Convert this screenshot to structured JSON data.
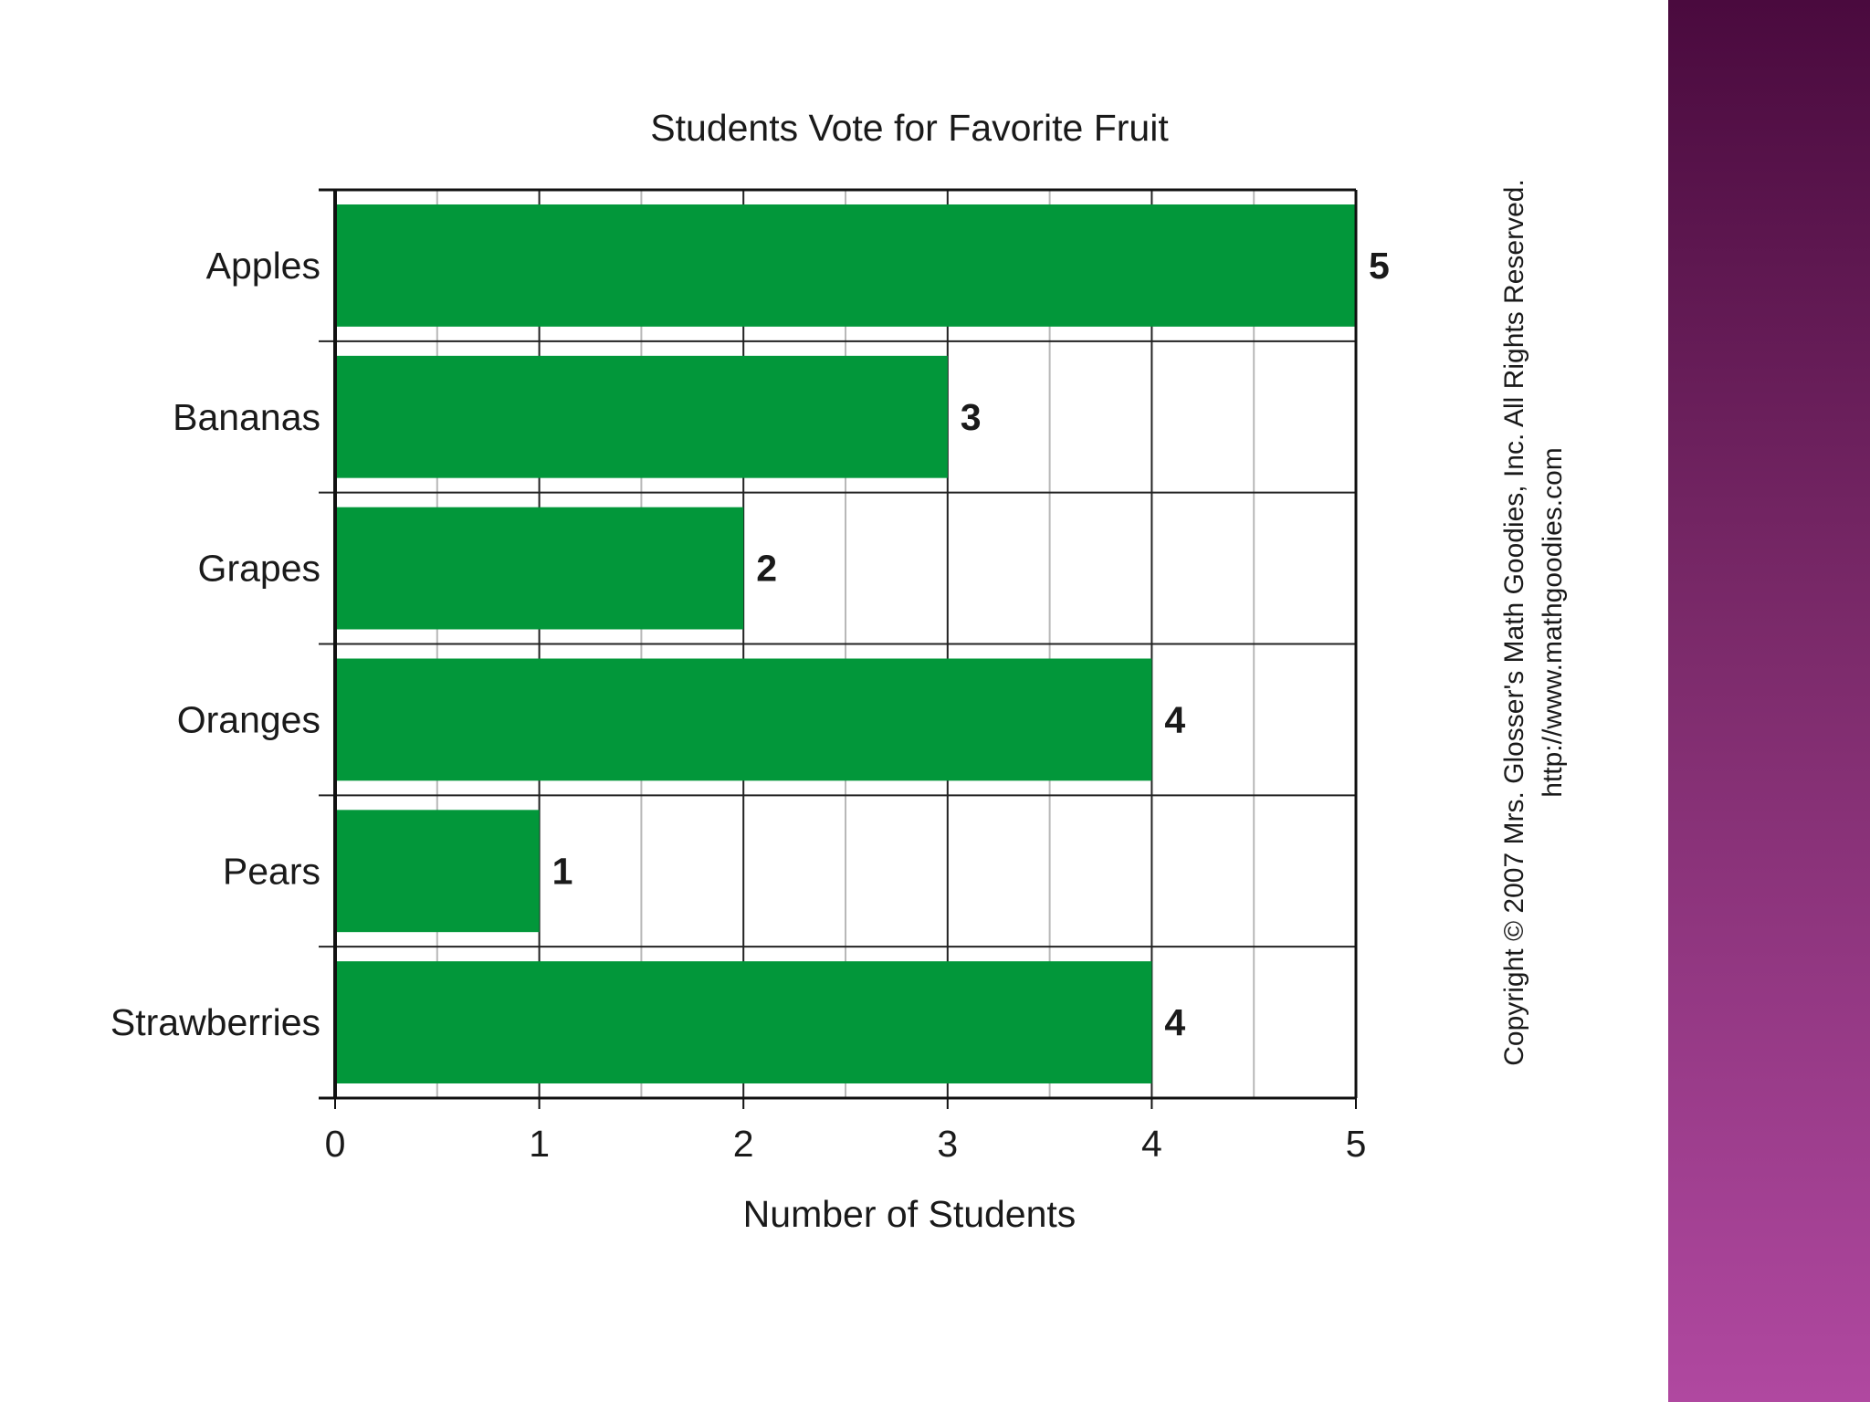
{
  "chart_data": {
    "type": "bar",
    "orientation": "horizontal",
    "title": "Students Vote for Favorite Fruit",
    "xlabel": "Number of Students",
    "ylabel": "",
    "categories": [
      "Apples",
      "Bananas",
      "Grapes",
      "Oranges",
      "Pears",
      "Strawberries"
    ],
    "values": [
      5,
      3,
      2,
      4,
      1,
      4
    ],
    "xlim": [
      0,
      5
    ],
    "xticks": [
      0,
      1,
      2,
      3,
      4,
      5
    ],
    "minor_gridlines": true,
    "grid": true,
    "legend": "none",
    "bar_color": "#02973a",
    "data_labels": true
  },
  "copyright": {
    "line1": "Copyright © 2007 Mrs. Glosser's Math Goodies, Inc. All Rights Reserved.",
    "line2": "http://www.mathgoodies.com"
  },
  "colors": {
    "panel_top": "#4a0a3e",
    "panel_bottom": "#b048a0",
    "major_grid": "#222222",
    "minor_grid": "#b8b8b8"
  }
}
